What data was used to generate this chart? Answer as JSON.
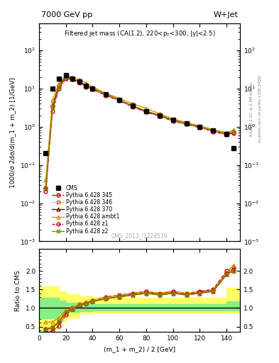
{
  "title_top": "7000 GeV pp",
  "title_right": "W+Jet",
  "plot_title": "Filtered jet mass (CA(1.2), 220<p_{T}<300, |y|<2.5)",
  "xlabel": "(m_1 + m_2) / 2 [GeV]",
  "ylabel_main": "1000/σ 2dσ/d(m_1 + m_2) [1/GeV]",
  "ylabel_ratio": "Ratio to CMS",
  "right_label1": "Rivet 3.1.10, ≥ 2.5M events",
  "right_label2": "mcplots.cern.ch [arXiv:1306.3436]",
  "watermark": "CMS_2013_I1224539",
  "xlim": [
    0,
    150
  ],
  "ylim_main": [
    0.001,
    500
  ],
  "ylim_ratio": [
    0.35,
    2.6
  ],
  "ratio_yticks": [
    0.5,
    1.0,
    1.5,
    2.0
  ],
  "cms_x": [
    5,
    10,
    15,
    20,
    25,
    30,
    35,
    40,
    50,
    60,
    70,
    80,
    90,
    100,
    110,
    120,
    130,
    140,
    145
  ],
  "cms_y": [
    0.2,
    10,
    18,
    22,
    18,
    15,
    12,
    10,
    7.0,
    5.0,
    3.5,
    2.5,
    2.0,
    1.5,
    1.2,
    1.0,
    0.8,
    0.65,
    0.28
  ],
  "p345_x": [
    5,
    10,
    15,
    20,
    25,
    30,
    35,
    40,
    50,
    60,
    70,
    80,
    90,
    100,
    110,
    120,
    130,
    140,
    145
  ],
  "p345_y": [
    0.025,
    3.5,
    12,
    20,
    18,
    15,
    12,
    10,
    7.0,
    5.0,
    3.5,
    2.5,
    2.0,
    1.5,
    1.2,
    1.0,
    0.8,
    0.65,
    0.72
  ],
  "p346_x": [
    5,
    10,
    15,
    20,
    25,
    30,
    35,
    40,
    50,
    60,
    70,
    80,
    90,
    100,
    110,
    120,
    130,
    140,
    145
  ],
  "p346_y": [
    0.025,
    3.5,
    12,
    20,
    18,
    15,
    12,
    10,
    7.0,
    5.0,
    3.5,
    2.5,
    2.0,
    1.5,
    1.2,
    1.0,
    0.8,
    0.65,
    0.72
  ],
  "p370_x": [
    5,
    10,
    15,
    20,
    25,
    30,
    35,
    40,
    50,
    60,
    70,
    80,
    90,
    100,
    110,
    120,
    130,
    140,
    145
  ],
  "p370_y": [
    0.025,
    3.5,
    12,
    20,
    18,
    15,
    12,
    10,
    7.0,
    5.0,
    3.5,
    2.5,
    2.0,
    1.5,
    1.2,
    1.0,
    0.8,
    0.65,
    0.72
  ],
  "pambt_x": [
    5,
    10,
    15,
    20,
    25,
    30,
    35,
    40,
    50,
    60,
    70,
    80,
    90,
    100,
    110,
    120,
    130,
    140,
    145
  ],
  "pambt_y": [
    0.04,
    5.0,
    14,
    22,
    20,
    17,
    14,
    11,
    7.5,
    5.5,
    4.0,
    3.0,
    2.2,
    1.6,
    1.3,
    1.05,
    0.85,
    0.7,
    0.82
  ],
  "pz1_x": [
    5,
    10,
    15,
    20,
    25,
    30,
    35,
    40,
    50,
    60,
    70,
    80,
    90,
    100,
    110,
    120,
    130,
    140,
    145
  ],
  "pz1_y": [
    0.02,
    2.5,
    10,
    18,
    17,
    14,
    11,
    9.5,
    6.5,
    4.8,
    3.3,
    2.4,
    1.9,
    1.4,
    1.15,
    0.95,
    0.75,
    0.62,
    0.68
  ],
  "pz2_x": [
    5,
    10,
    15,
    20,
    25,
    30,
    35,
    40,
    50,
    60,
    70,
    80,
    90,
    100,
    110,
    120,
    130,
    140,
    145
  ],
  "pz2_y": [
    0.025,
    3.0,
    11,
    19,
    17.5,
    14.5,
    11.5,
    10,
    7.0,
    5.0,
    3.5,
    2.6,
    2.0,
    1.5,
    1.2,
    1.0,
    0.8,
    0.65,
    0.72
  ],
  "r345_y": [
    0.43,
    0.45,
    0.65,
    0.9,
    1.0,
    1.1,
    1.15,
    1.2,
    1.3,
    1.35,
    1.4,
    1.45,
    1.4,
    1.45,
    1.4,
    1.45,
    1.5,
    2.0,
    2.1
  ],
  "r346_y": [
    0.43,
    0.5,
    0.67,
    0.92,
    1.0,
    1.1,
    1.15,
    1.2,
    1.28,
    1.3,
    1.38,
    1.4,
    1.38,
    1.42,
    1.38,
    1.42,
    1.48,
    1.95,
    2.05
  ],
  "r370_y": [
    0.43,
    0.47,
    0.62,
    0.88,
    0.98,
    1.08,
    1.12,
    1.18,
    1.25,
    1.3,
    1.35,
    1.4,
    1.35,
    1.4,
    1.35,
    1.4,
    1.45,
    1.9,
    2.0
  ],
  "rambt_y": [
    0.62,
    0.62,
    0.75,
    0.95,
    1.0,
    1.1,
    1.15,
    1.2,
    1.28,
    1.35,
    1.4,
    1.45,
    1.4,
    1.45,
    1.4,
    1.42,
    1.48,
    1.95,
    2.15
  ],
  "rz1_y": [
    0.35,
    0.38,
    0.52,
    0.82,
    0.97,
    1.07,
    1.12,
    1.18,
    1.25,
    1.32,
    1.37,
    1.42,
    1.37,
    1.42,
    1.37,
    1.42,
    1.47,
    1.92,
    2.05
  ],
  "rz2_y": [
    0.43,
    0.47,
    0.62,
    0.88,
    0.98,
    1.08,
    1.12,
    1.18,
    1.25,
    1.3,
    1.35,
    1.4,
    1.35,
    1.4,
    1.35,
    1.4,
    1.45,
    1.9,
    2.0
  ],
  "ybnd_x": [
    0,
    5,
    10,
    15,
    20,
    30,
    40,
    50,
    70,
    90,
    110,
    130,
    140,
    150
  ],
  "ybnd_lo": [
    0.42,
    0.42,
    0.42,
    0.65,
    0.75,
    0.85,
    0.88,
    0.88,
    0.88,
    0.88,
    0.88,
    0.88,
    0.88,
    0.88
  ],
  "ybnd_hi": [
    1.58,
    1.58,
    1.58,
    1.45,
    1.38,
    1.32,
    1.3,
    1.28,
    1.28,
    1.28,
    1.28,
    1.28,
    1.55,
    1.65
  ],
  "gbnd_x": [
    0,
    5,
    10,
    15,
    20,
    30,
    40,
    50,
    70,
    90,
    110,
    130,
    140,
    150
  ],
  "gbnd_lo": [
    0.72,
    0.72,
    0.72,
    0.85,
    0.9,
    0.92,
    0.93,
    0.93,
    0.93,
    0.93,
    0.93,
    0.93,
    0.93,
    0.93
  ],
  "gbnd_hi": [
    1.28,
    1.28,
    1.28,
    1.2,
    1.15,
    1.12,
    1.11,
    1.11,
    1.11,
    1.11,
    1.11,
    1.11,
    1.18,
    1.28
  ],
  "color_345": "#cc0000",
  "color_346": "#cc6600",
  "color_370": "#880000",
  "color_ambt": "#cc9900",
  "color_z1": "#cc0033",
  "color_z2": "#888800",
  "color_cms": "black"
}
